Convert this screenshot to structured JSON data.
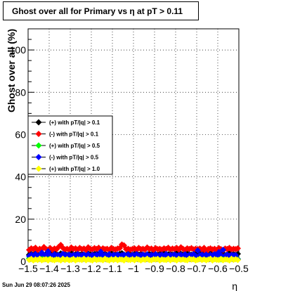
{
  "title": "Ghost over all for Primary vs  η at pT > 0.11",
  "timestamp": "Sun Jun 29 08:07:26 2025",
  "chart_data": {
    "type": "scatter",
    "title": "Ghost over all for Primary vs  η at pT > 0.11",
    "xlabel": "η",
    "ylabel": "Ghost over all (%)",
    "xlim": [
      -1.5,
      -0.5
    ],
    "ylim": [
      0,
      110
    ],
    "x_ticks": [
      "−1.5",
      "−1.4",
      "−1.3",
      "−1.2",
      "−1.1",
      "−1",
      "−0.9",
      "−0.8",
      "−0.7",
      "−0.6",
      "−0.5"
    ],
    "y_ticks": [
      "0",
      "20",
      "40",
      "60",
      "80",
      "100"
    ],
    "grid": true,
    "legend_position": "middle-left",
    "x": [
      -1.495,
      -1.485,
      -1.475,
      -1.465,
      -1.455,
      -1.445,
      -1.435,
      -1.425,
      -1.415,
      -1.405,
      -1.395,
      -1.385,
      -1.375,
      -1.365,
      -1.355,
      -1.345,
      -1.335,
      -1.325,
      -1.315,
      -1.305,
      -1.295,
      -1.285,
      -1.275,
      -1.265,
      -1.255,
      -1.245,
      -1.235,
      -1.225,
      -1.215,
      -1.205,
      -1.195,
      -1.185,
      -1.175,
      -1.165,
      -1.155,
      -1.145,
      -1.135,
      -1.125,
      -1.115,
      -1.105,
      -1.095,
      -1.085,
      -1.075,
      -1.065,
      -1.055,
      -1.045,
      -1.035,
      -1.025,
      -1.015,
      -1.005,
      -0.995,
      -0.985,
      -0.975,
      -0.965,
      -0.955,
      -0.945,
      -0.935,
      -0.925,
      -0.915,
      -0.905,
      -0.895,
      -0.885,
      -0.875,
      -0.865,
      -0.855,
      -0.845,
      -0.835,
      -0.825,
      -0.815,
      -0.805,
      -0.795,
      -0.785,
      -0.775,
      -0.765,
      -0.755,
      -0.745,
      -0.735,
      -0.725,
      -0.715,
      -0.705,
      -0.695,
      -0.685,
      -0.675,
      -0.665,
      -0.655,
      -0.645,
      -0.635,
      -0.625,
      -0.615,
      -0.605,
      -0.595,
      -0.585,
      -0.575,
      -0.565,
      -0.555,
      -0.545,
      -0.535,
      -0.525,
      -0.515,
      -0.505
    ],
    "series": [
      {
        "name": "(+) with pT/|q| > 0.1",
        "color": "#000000",
        "values": [
          3.2,
          3.6,
          3.0,
          3.8,
          3.4,
          3.1,
          3.9,
          3.3,
          3.5,
          3.0,
          3.7,
          3.2,
          4.0,
          3.4,
          3.1,
          3.8,
          3.3,
          3.6,
          3.0,
          3.5,
          3.9,
          3.2,
          3.4,
          3.7,
          3.1,
          3.6,
          3.3,
          3.0,
          3.8,
          3.4,
          3.2,
          3.5,
          3.9,
          3.1,
          3.6,
          3.3,
          3.7,
          3.0,
          3.4,
          3.8,
          3.2,
          3.5,
          3.1,
          3.6,
          3.9,
          3.3,
          3.0,
          3.7,
          3.4,
          3.2,
          3.5,
          3.8,
          3.1,
          3.6,
          3.3,
          3.0,
          3.4,
          3.7,
          3.2,
          3.9,
          3.5,
          3.1,
          3.6,
          3.3,
          3.8,
          3.0,
          3.4,
          3.7,
          3.2,
          3.5,
          3.9,
          3.1,
          3.6,
          3.3,
          3.0,
          3.8,
          3.4,
          3.2,
          3.5,
          3.7,
          3.1,
          3.6,
          3.3,
          3.9,
          3.0,
          3.4,
          3.8,
          3.2,
          3.5,
          3.1,
          3.7,
          3.3,
          3.6,
          3.0,
          3.4,
          3.9,
          3.2,
          3.5,
          3.1,
          3.6
        ]
      },
      {
        "name": "(-) with pT/|q| > 0.1",
        "color": "#ff0000",
        "values": [
          5.5,
          6.2,
          5.8,
          6.5,
          5.4,
          6.0,
          5.7,
          6.8,
          5.9,
          5.6,
          6.3,
          5.5,
          6.1,
          5.8,
          6.9,
          7.8,
          6.4,
          5.7,
          6.0,
          5.5,
          6.6,
          5.9,
          6.2,
          5.6,
          6.4,
          5.8,
          6.1,
          5.5,
          6.7,
          6.0,
          5.7,
          6.3,
          5.9,
          6.5,
          5.6,
          6.2,
          5.8,
          6.0,
          5.5,
          6.4,
          5.9,
          5.7,
          6.1,
          6.3,
          8.0,
          7.6,
          5.8,
          6.0,
          5.6,
          5.9,
          6.2,
          5.5,
          6.4,
          5.8,
          6.0,
          5.7,
          6.6,
          5.9,
          6.1,
          5.5,
          6.3,
          5.8,
          6.0,
          5.6,
          6.2,
          5.9,
          6.5,
          5.7,
          6.1,
          5.8,
          6.4,
          5.6,
          6.7,
          6.0,
          5.5,
          6.2,
          5.9,
          6.3,
          5.7,
          6.0,
          5.8,
          6.1,
          5.6,
          6.4,
          4.5,
          5.9,
          6.2,
          5.7,
          6.0,
          5.5,
          6.3,
          5.8,
          5.2,
          6.1,
          5.9,
          6.4,
          5.7,
          6.0,
          5.8,
          6.2
        ]
      },
      {
        "name": "(+) with pT/|q| > 0.5",
        "color": "#00ff00",
        "values": [
          1.5,
          2.2,
          1.8,
          2.5,
          1.6,
          2.0,
          1.4,
          2.3,
          1.9,
          1.7,
          2.1,
          1.5,
          2.4,
          1.8,
          2.0,
          1.6,
          2.2,
          1.9,
          1.5,
          2.3,
          1.7,
          2.0,
          1.8,
          2.1,
          1.6,
          2.4,
          1.9,
          1.5,
          2.2,
          1.8,
          2.0,
          1.7,
          2.3,
          1.6,
          2.1,
          1.9,
          1.5,
          2.2,
          1.8,
          2.0,
          1.7,
          2.4,
          1.6,
          2.1,
          1.9,
          1.5,
          2.3,
          1.8,
          2.0,
          1.7,
          2.2,
          1.6,
          2.1,
          1.9,
          1.5,
          2.3,
          1.8,
          2.0,
          1.7,
          2.4,
          1.6,
          2.1,
          1.9,
          1.5,
          2.2,
          1.8,
          2.0,
          1.7,
          2.3,
          1.6,
          2.1,
          1.9,
          1.5,
          2.2,
          1.8,
          2.0,
          1.7,
          2.4,
          1.6,
          2.1,
          1.9,
          1.5,
          2.3,
          1.8,
          2.0,
          1.7,
          2.2,
          1.6,
          1.2,
          1.9,
          1.5,
          1.0,
          1.8,
          1.3,
          1.7,
          1.1,
          1.6,
          1.4,
          1.8,
          1.2
        ]
      },
      {
        "name": "(-) with pT/|q| > 0.5",
        "color": "#0000ff",
        "values": [
          2.6,
          3.2,
          2.8,
          3.5,
          2.7,
          3.0,
          4.2,
          3.3,
          2.9,
          4.8,
          3.1,
          2.6,
          3.4,
          2.9,
          3.0,
          2.7,
          3.6,
          3.2,
          2.8,
          3.3,
          2.6,
          3.1,
          2.9,
          3.5,
          2.7,
          3.0,
          3.2,
          2.8,
          3.4,
          2.6,
          3.1,
          2.9,
          3.3,
          2.7,
          4.6,
          3.0,
          3.2,
          2.8,
          3.5,
          2.6,
          3.1,
          2.9,
          3.3,
          2.7,
          3.0,
          3.2,
          2.8,
          3.4,
          2.6,
          3.1,
          2.9,
          3.5,
          2.7,
          3.0,
          3.2,
          2.8,
          3.3,
          2.6,
          3.1,
          2.9,
          3.4,
          2.7,
          3.0,
          3.2,
          2.8,
          3.5,
          2.6,
          3.1,
          2.9,
          3.3,
          2.7,
          3.0,
          3.2,
          2.8,
          3.4,
          2.6,
          3.1,
          2.9,
          3.5,
          2.7,
          5.2,
          3.0,
          3.2,
          2.8,
          3.3,
          2.6,
          3.1,
          2.9,
          3.4,
          2.7,
          4.4,
          3.0,
          5.5,
          2.8,
          3.2,
          2.6,
          3.1,
          2.9,
          3.0,
          1.0
        ]
      },
      {
        "name": "(+) with pT/|q| > 1.0",
        "color": "#ffff00",
        "values": [
          0.8,
          1.2,
          0.5,
          1.0,
          0.7,
          1.3,
          0.6,
          0.9,
          1.1,
          0.5,
          1.2,
          0.8,
          0.6,
          1.0,
          0.9,
          0.5,
          1.3,
          0.7,
          1.1,
          0.6,
          0.8,
          1.2,
          0.5,
          1.0,
          0.9,
          0.7,
          1.3,
          0.6,
          1.1,
          0.8,
          0.5,
          1.2,
          0.7,
          1.0,
          0.9,
          0.6,
          1.3,
          0.8,
          0.5,
          1.1,
          0.7,
          1.2,
          0.6,
          1.0,
          0.9,
          0.5,
          1.3,
          0.8,
          0.7,
          1.1,
          0.6,
          1.2,
          0.9,
          0.5,
          1.0,
          0.8,
          1.3,
          0.7,
          0.6,
          1.1,
          0.9,
          1.2,
          0.5,
          1.0,
          0.8,
          0.7,
          1.3,
          0.6,
          1.1,
          0.9,
          0.5,
          1.2,
          0.8,
          1.0,
          0.7,
          0.6,
          1.3,
          0.9,
          1.1,
          0.5,
          0.8,
          1.2,
          0.7,
          1.0,
          0.6,
          0.9,
          1.3,
          0.5,
          1.1,
          0.8,
          0.7,
          1.2,
          0.6,
          1.0,
          0.9,
          0.5,
          1.3,
          0.8,
          1.1,
          0.7
        ]
      }
    ]
  }
}
